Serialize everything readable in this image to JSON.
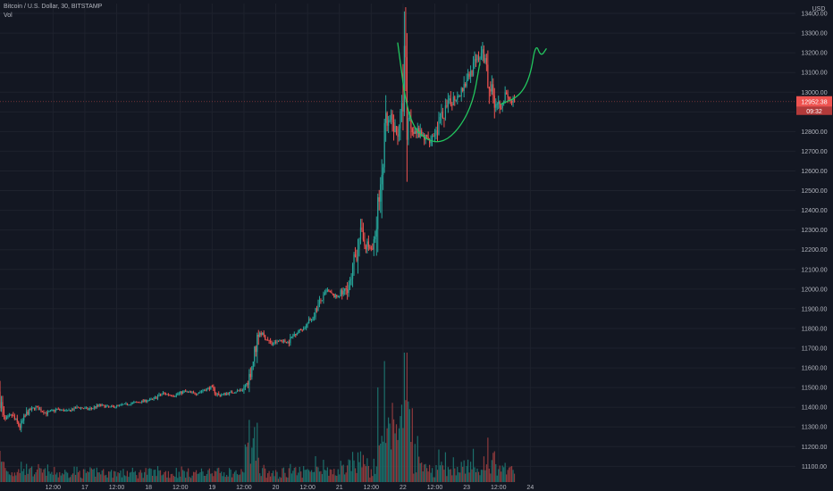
{
  "header": {
    "symbol_line": "Bitcoin / U.S. Dollar, 30, BITSTAMP",
    "volume_label": "Vol",
    "currency": "USD"
  },
  "colors": {
    "background": "#131722",
    "grid": "#1e222d",
    "up": "#26a69a",
    "down": "#ef5350",
    "volume_up": "#1c6f6b",
    "volume_down": "#8e3a3c",
    "drawing": "#22c55e",
    "axis_text": "#b2b5be",
    "last_price": "#ef5350"
  },
  "chart_data": {
    "type": "candlestick",
    "symbol": "BTCUSD",
    "exchange": "BITSTAMP",
    "interval_minutes": 30,
    "ylim": [
      11020,
      13450
    ],
    "y_ticks": [
      11100,
      11200,
      11300,
      11400,
      11500,
      11600,
      11700,
      11800,
      11900,
      12000,
      12100,
      12200,
      12300,
      12400,
      12500,
      12600,
      12700,
      12800,
      12900,
      13000,
      13100,
      13200,
      13300,
      13400
    ],
    "x_range_hours": [
      -8,
      292
    ],
    "x_ticks": [
      {
        "label": "12:00",
        "hour": 12
      },
      {
        "label": "17",
        "hour": 24
      },
      {
        "label": "12:00",
        "hour": 36
      },
      {
        "label": "18",
        "hour": 48
      },
      {
        "label": "12:00",
        "hour": 60
      },
      {
        "label": "19",
        "hour": 72
      },
      {
        "label": "12:00",
        "hour": 84
      },
      {
        "label": "20",
        "hour": 96
      },
      {
        "label": "12:00",
        "hour": 108
      },
      {
        "label": "21",
        "hour": 120
      },
      {
        "label": "12:00",
        "hour": 132
      },
      {
        "label": "22",
        "hour": 144
      },
      {
        "label": "12:00",
        "hour": 156
      },
      {
        "label": "23",
        "hour": 168
      },
      {
        "label": "12:00",
        "hour": 180
      },
      {
        "label": "24",
        "hour": 192
      }
    ],
    "price_path": [
      [
        -8,
        11480
      ],
      [
        -6,
        11330
      ],
      [
        -3,
        11360
      ],
      [
        0,
        11300
      ],
      [
        3,
        11380
      ],
      [
        6,
        11400
      ],
      [
        10,
        11370
      ],
      [
        14,
        11390
      ],
      [
        18,
        11380
      ],
      [
        22,
        11400
      ],
      [
        26,
        11390
      ],
      [
        30,
        11410
      ],
      [
        34,
        11400
      ],
      [
        38,
        11410
      ],
      [
        42,
        11420
      ],
      [
        46,
        11430
      ],
      [
        50,
        11440
      ],
      [
        54,
        11470
      ],
      [
        58,
        11460
      ],
      [
        62,
        11480
      ],
      [
        66,
        11470
      ],
      [
        70,
        11490
      ],
      [
        72,
        11500
      ],
      [
        75,
        11460
      ],
      [
        78,
        11470
      ],
      [
        81,
        11480
      ],
      [
        84,
        11490
      ],
      [
        86,
        11530
      ],
      [
        88,
        11640
      ],
      [
        90,
        11790
      ],
      [
        92,
        11760
      ],
      [
        95,
        11720
      ],
      [
        98,
        11740
      ],
      [
        101,
        11730
      ],
      [
        104,
        11780
      ],
      [
        107,
        11800
      ],
      [
        110,
        11850
      ],
      [
        113,
        11930
      ],
      [
        116,
        11990
      ],
      [
        119,
        11960
      ],
      [
        122,
        11980
      ],
      [
        125,
        12040
      ],
      [
        127,
        12200
      ],
      [
        128,
        12300
      ],
      [
        129,
        12260
      ],
      [
        131,
        12220
      ],
      [
        133,
        12200
      ],
      [
        134,
        12250
      ],
      [
        135,
        12400
      ],
      [
        136,
        12480
      ],
      [
        137,
        12700
      ],
      [
        138,
        12820
      ],
      [
        140,
        12860
      ],
      [
        142,
        12780
      ],
      [
        144,
        12900
      ],
      [
        145,
        13220
      ],
      [
        146,
        12900
      ],
      [
        148,
        12820
      ],
      [
        151,
        12780
      ],
      [
        154,
        12760
      ],
      [
        157,
        12800
      ],
      [
        160,
        12900
      ],
      [
        163,
        12960
      ],
      [
        166,
        13000
      ],
      [
        169,
        13080
      ],
      [
        172,
        13150
      ],
      [
        174,
        13200
      ],
      [
        176,
        13150
      ],
      [
        177,
        13050
      ],
      [
        179,
        12960
      ],
      [
        181,
        12940
      ],
      [
        183,
        12980
      ],
      [
        185,
        12950
      ],
      [
        186,
        12952
      ]
    ],
    "last_price": 12952.38,
    "last_price_label": "12952.38",
    "countdown_label": "09:32",
    "annotations": [
      {
        "kind": "cup-curve",
        "description": "hand-drawn rounded bottom",
        "points": [
          [
            142,
            13250
          ],
          [
            146,
            12850
          ],
          [
            154,
            12740
          ],
          [
            162,
            12760
          ],
          [
            170,
            12920
          ],
          [
            173,
            13150
          ]
        ]
      },
      {
        "kind": "handle-arrow",
        "description": "hand-drawn arrow up",
        "points": [
          [
            181,
            12940
          ],
          [
            188,
            12980
          ],
          [
            192,
            13080
          ],
          [
            194,
            13250
          ],
          [
            196,
            13180
          ],
          [
            198,
            13220
          ]
        ]
      }
    ]
  }
}
